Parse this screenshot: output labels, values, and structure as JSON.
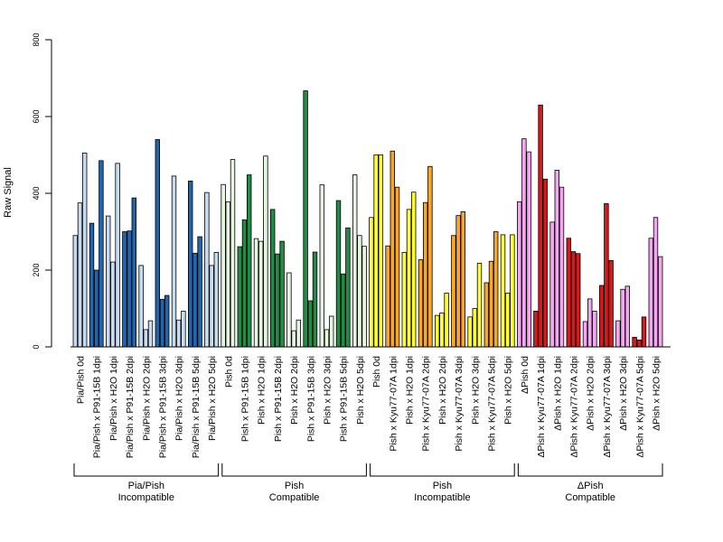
{
  "chart_data": {
    "type": "bar",
    "ylabel": "Raw Signal",
    "ylim": [
      0,
      800
    ],
    "yticks": [
      0,
      200,
      400,
      600,
      800
    ],
    "grid": false,
    "replicates_per_category": 3,
    "colors": {
      "light_blue": "#c6dbef",
      "dark_blue": "#2166ac",
      "light_green": "#e5f5e0",
      "dark_green": "#238b45",
      "yellow": "#ffff33",
      "orange": "#f7a626",
      "pink": "#f4a6f0",
      "red": "#d7191c"
    },
    "categories": [
      {
        "label": "Pia/Pish 0d",
        "color": "light_blue",
        "values": [
          290,
          375,
          505
        ]
      },
      {
        "label": "Pia/Pish x P91-15B 1dpi",
        "color": "dark_blue",
        "values": [
          322,
          200,
          485
        ]
      },
      {
        "label": "Pia/Pish x H2O 1dpi",
        "color": "light_blue",
        "values": [
          341,
          221,
          478
        ]
      },
      {
        "label": "Pia/Pish x P91-15B 2dpi",
        "color": "dark_blue",
        "values": [
          300,
          302,
          388
        ]
      },
      {
        "label": "Pia/Pish x H2O 2dpi",
        "color": "light_blue",
        "values": [
          212,
          45,
          68
        ]
      },
      {
        "label": "Pia/Pish x P91-15B 3dpi",
        "color": "dark_blue",
        "values": [
          540,
          124,
          134
        ]
      },
      {
        "label": "Pia/Pish x H2O 3dpi",
        "color": "light_blue",
        "values": [
          445,
          70,
          93
        ]
      },
      {
        "label": "Pia/Pish x P91-15B 5dpi",
        "color": "dark_blue",
        "values": [
          432,
          244,
          287
        ]
      },
      {
        "label": "Pia/Pish x H2O 5dpi",
        "color": "light_blue",
        "values": [
          402,
          212,
          246
        ]
      },
      {
        "label": "Pish 0d",
        "color": "light_green",
        "values": [
          423,
          378,
          488
        ]
      },
      {
        "label": "Pish x P91-15B 1dpi",
        "color": "dark_green",
        "values": [
          261,
          331,
          448
        ]
      },
      {
        "label": "Pish x H2O 1dpi",
        "color": "light_green",
        "values": [
          282,
          275,
          497
        ]
      },
      {
        "label": "Pish x P91-15B 2dpi",
        "color": "dark_green",
        "values": [
          358,
          242,
          275
        ]
      },
      {
        "label": "Pish x H2O 2dpi",
        "color": "light_green",
        "values": [
          193,
          42,
          70
        ]
      },
      {
        "label": "Pish x P91-15B 3dpi",
        "color": "dark_green",
        "values": [
          667,
          120,
          247
        ]
      },
      {
        "label": "Pish x H2O 3dpi",
        "color": "light_green",
        "values": [
          422,
          45,
          80
        ]
      },
      {
        "label": "Pish x P91-15B 5dpi",
        "color": "dark_green",
        "values": [
          381,
          190,
          310
        ]
      },
      {
        "label": "Pish x H2O 5dpi",
        "color": "light_green",
        "values": [
          448,
          290,
          262
        ]
      },
      {
        "label": "Pish 0d",
        "color": "yellow",
        "values": [
          337,
          500,
          500
        ]
      },
      {
        "label": "Pish x Kyu77-07A 1dpi",
        "color": "orange",
        "values": [
          263,
          510,
          416
        ]
      },
      {
        "label": "Pish x H2O 1dpi",
        "color": "yellow",
        "values": [
          246,
          358,
          403
        ]
      },
      {
        "label": "Pish x Kyu77-07A 2dpi",
        "color": "orange",
        "values": [
          227,
          376,
          470
        ]
      },
      {
        "label": "Pish x H2O 2dpi",
        "color": "yellow",
        "values": [
          82,
          88,
          140
        ]
      },
      {
        "label": "Pish x Kyu77-07A 3dpi",
        "color": "orange",
        "values": [
          290,
          342,
          352
        ]
      },
      {
        "label": "Pish x H2O 3dpi",
        "color": "yellow",
        "values": [
          78,
          100,
          218
        ]
      },
      {
        "label": "Pish x Kyu77-07A 5dpi",
        "color": "orange",
        "values": [
          167,
          223,
          300
        ]
      },
      {
        "label": "Pish x H2O 5dpi",
        "color": "yellow",
        "values": [
          292,
          140,
          292
        ]
      },
      {
        "label": "ΔPish 0d",
        "color": "pink",
        "values": [
          378,
          542,
          508
        ]
      },
      {
        "label": "ΔPish x Kyu77-07A 1dpi",
        "color": "red",
        "values": [
          93,
          630,
          437
        ]
      },
      {
        "label": "ΔPish x H2O 1dpi",
        "color": "pink",
        "values": [
          325,
          460,
          416
        ]
      },
      {
        "label": "ΔPish x Kyu77-07A 2dpi",
        "color": "red",
        "values": [
          283,
          248,
          243
        ]
      },
      {
        "label": "ΔPish x H2O 2dpi",
        "color": "pink",
        "values": [
          66,
          125,
          93
        ]
      },
      {
        "label": "ΔPish x Kyu77-07A 3dpi",
        "color": "red",
        "values": [
          160,
          373,
          225
        ]
      },
      {
        "label": "ΔPish x H2O 3dpi",
        "color": "pink",
        "values": [
          68,
          150,
          158
        ]
      },
      {
        "label": "ΔPish x Kyu77-07A 5dpi",
        "color": "red",
        "values": [
          25,
          18,
          78
        ]
      },
      {
        "label": "ΔPish x H2O 5dpi",
        "color": "pink",
        "values": [
          283,
          337,
          235
        ]
      }
    ],
    "groups": [
      {
        "line1": "Pia/Pish",
        "line2": "Incompatible",
        "start": 0,
        "end": 8
      },
      {
        "line1": "Pish",
        "line2": "Compatible",
        "start": 9,
        "end": 17
      },
      {
        "line1": "Pish",
        "line2": "Incompatible",
        "start": 18,
        "end": 26
      },
      {
        "line1": "ΔPish",
        "line2": "Compatible",
        "start": 27,
        "end": 35
      }
    ]
  }
}
